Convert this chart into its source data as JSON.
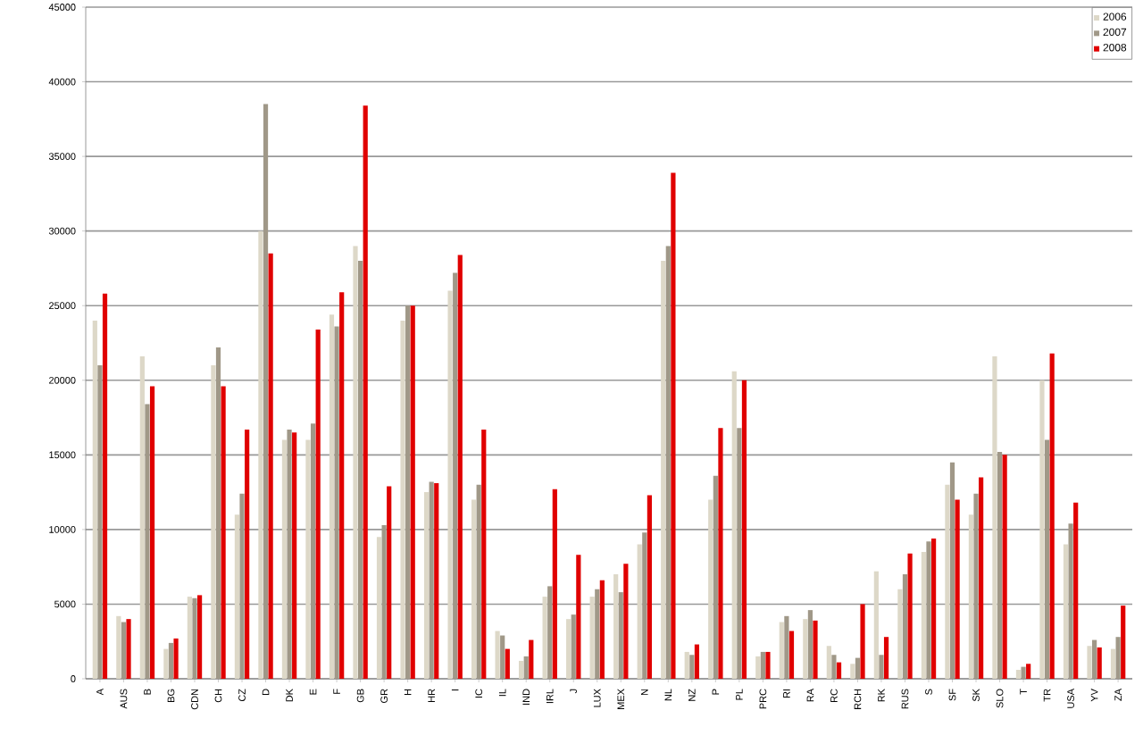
{
  "chart_data": {
    "type": "bar",
    "categories": [
      "A",
      "AUS",
      "B",
      "BG",
      "CDN",
      "CH",
      "CZ",
      "D",
      "DK",
      "E",
      "F",
      "GB",
      "GR",
      "H",
      "HR",
      "I",
      "IC",
      "IL",
      "IND",
      "IRL",
      "J",
      "LUX",
      "MEX",
      "N",
      "NL",
      "NZ",
      "P",
      "PL",
      "PRC",
      "RI",
      "RA",
      "RC",
      "RCH",
      "RK",
      "RUS",
      "S",
      "SF",
      "SK",
      "SLO",
      "T",
      "TR",
      "USA",
      "YV",
      "ZA"
    ],
    "series": [
      {
        "name": "2006",
        "color": "#ddd8c8",
        "values": [
          24000,
          4200,
          21600,
          2000,
          5500,
          21000,
          11000,
          30000,
          16000,
          16000,
          24400,
          29000,
          9500,
          24000,
          12500,
          26000,
          12000,
          3200,
          1200,
          5500,
          4000,
          5500,
          7000,
          9000,
          28000,
          1800,
          12000,
          20600,
          1500,
          3800,
          4000,
          2200,
          1000,
          7200,
          6000,
          8500,
          13000,
          11000,
          21600,
          600,
          20000,
          9000,
          2200,
          2000
        ]
      },
      {
        "name": "2007",
        "color": "#a09888",
        "values": [
          21000,
          3800,
          18400,
          2400,
          5400,
          22200,
          12400,
          38500,
          16700,
          17100,
          23600,
          28000,
          10300,
          25000,
          13200,
          27200,
          13000,
          2900,
          1500,
          6200,
          4300,
          6000,
          5800,
          9800,
          29000,
          1600,
          13600,
          16800,
          1800,
          4200,
          4600,
          1600,
          1400,
          1600,
          7000,
          9200,
          14500,
          12400,
          15200,
          800,
          16000,
          10400,
          2600,
          2800
        ]
      },
      {
        "name": "2008",
        "color": "#e00000",
        "values": [
          25800,
          4000,
          19600,
          2700,
          5600,
          19600,
          16700,
          28500,
          16500,
          23400,
          25900,
          38400,
          12900,
          25000,
          13100,
          28400,
          16700,
          2000,
          2600,
          12700,
          8300,
          6600,
          7700,
          12300,
          33900,
          2300,
          16800,
          20000,
          1800,
          3200,
          3900,
          1100,
          5000,
          2800,
          8400,
          9400,
          12000,
          13500,
          15000,
          1000,
          21800,
          11800,
          2100,
          4900
        ]
      }
    ],
    "ylim": [
      0,
      45000
    ],
    "yticks": [
      0,
      5000,
      10000,
      15000,
      20000,
      25000,
      30000,
      35000,
      40000,
      45000
    ],
    "grid": "y",
    "legend": "top right"
  }
}
